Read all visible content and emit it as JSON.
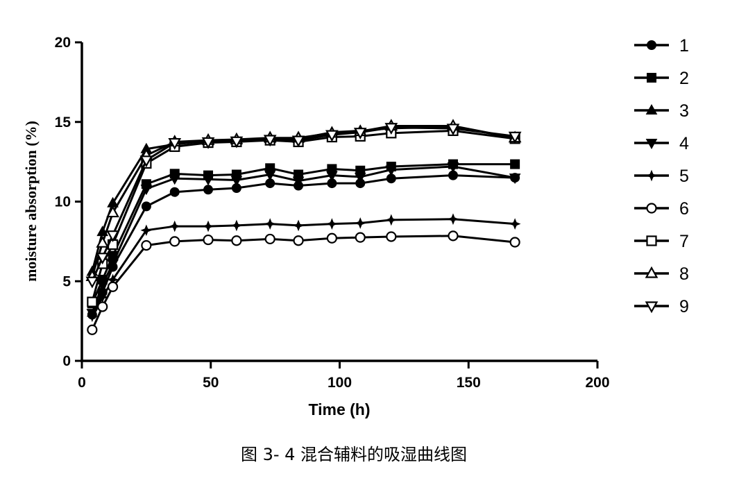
{
  "chart_data": {
    "type": "line",
    "xlabel": "Time (h)",
    "ylabel": "moisture absorption (%)",
    "xlim": [
      0,
      200
    ],
    "ylim": [
      0,
      20
    ],
    "x_ticks": [
      "0",
      "50",
      "100",
      "150",
      "200"
    ],
    "y_ticks": [
      "0",
      "5",
      "10",
      "15",
      "20"
    ],
    "grid": false,
    "legend_position": "right",
    "caption": "图 3- 4 混合辅料的吸湿曲线图",
    "x": [
      4,
      8,
      12,
      25,
      36,
      49,
      60,
      73,
      84,
      97,
      108,
      120,
      144,
      168
    ],
    "series": [
      {
        "name": "1",
        "marker": "circle-filled",
        "values": [
          2.9,
          4.3,
          5.9,
          9.7,
          10.6,
          10.75,
          10.85,
          11.15,
          11.0,
          11.15,
          11.15,
          11.45,
          11.65,
          11.5
        ]
      },
      {
        "name": "2",
        "marker": "square-filled",
        "values": [
          3.6,
          5.1,
          6.6,
          11.1,
          11.75,
          11.65,
          11.7,
          12.1,
          11.7,
          12.05,
          11.95,
          12.2,
          12.35,
          12.35
        ]
      },
      {
        "name": "3",
        "marker": "triangle-up-filled",
        "values": [
          5.6,
          8.1,
          9.9,
          13.3,
          13.6,
          13.8,
          13.85,
          13.95,
          13.95,
          14.35,
          14.45,
          14.6,
          14.7,
          14.0
        ]
      },
      {
        "name": "4",
        "marker": "triangle-down-filled",
        "values": [
          3.0,
          4.8,
          6.1,
          10.8,
          11.45,
          11.4,
          11.35,
          11.7,
          11.3,
          11.65,
          11.55,
          12.0,
          12.2,
          11.5
        ]
      },
      {
        "name": "5",
        "marker": "plus-filled",
        "values": [
          2.8,
          4.0,
          5.1,
          8.2,
          8.45,
          8.45,
          8.5,
          8.6,
          8.5,
          8.6,
          8.65,
          8.85,
          8.9,
          8.6
        ]
      },
      {
        "name": "6",
        "marker": "circle-open",
        "values": [
          1.95,
          3.4,
          4.65,
          7.25,
          7.5,
          7.6,
          7.55,
          7.65,
          7.55,
          7.7,
          7.75,
          7.8,
          7.85,
          7.45
        ]
      },
      {
        "name": "7",
        "marker": "square-open",
        "values": [
          3.7,
          6.1,
          7.3,
          12.4,
          13.45,
          13.7,
          13.75,
          13.85,
          13.75,
          14.05,
          14.1,
          14.3,
          14.45,
          13.95
        ]
      },
      {
        "name": "8",
        "marker": "triangle-up-open",
        "values": [
          5.3,
          7.4,
          9.3,
          12.9,
          13.75,
          13.85,
          13.9,
          14.0,
          14.0,
          14.3,
          14.4,
          14.75,
          14.75,
          14.0
        ]
      },
      {
        "name": "9",
        "marker": "triangle-down-open",
        "values": [
          5.0,
          6.5,
          7.9,
          12.6,
          13.7,
          13.75,
          13.8,
          13.9,
          13.85,
          14.2,
          14.35,
          14.65,
          14.6,
          14.1
        ]
      }
    ]
  }
}
